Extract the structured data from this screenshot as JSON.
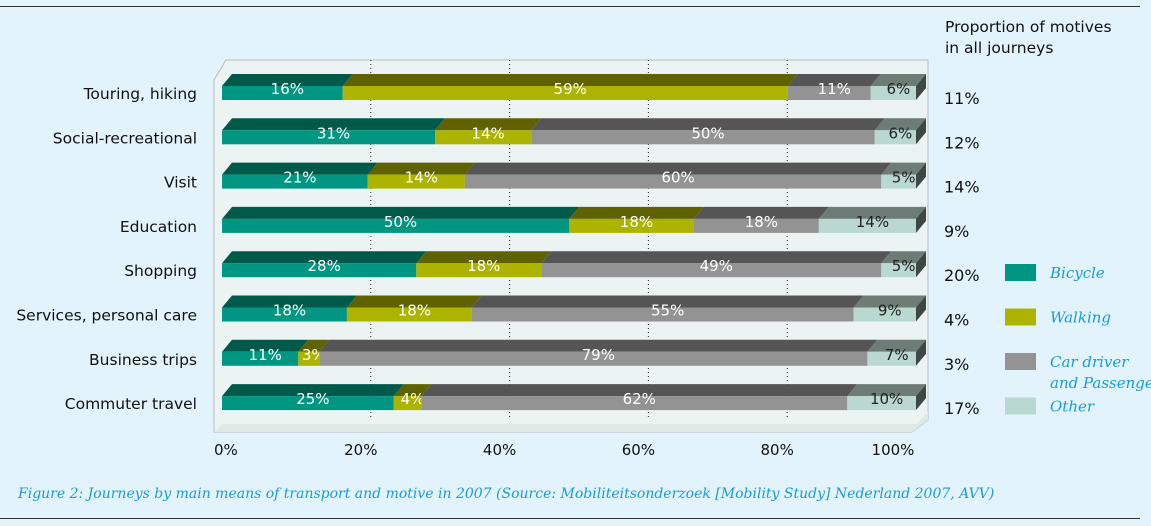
{
  "chart_data": {
    "type": "bar",
    "orientation": "horizontal",
    "stacked": true,
    "percent": true,
    "categories": [
      "Touring, hiking",
      "Social-recreational",
      "Visit",
      "Education",
      "Shopping",
      "Services,  personal care",
      "Business trips",
      "Commuter travel"
    ],
    "series": [
      {
        "name": "Bicycle",
        "color": "#009681",
        "top": "#005a4a",
        "label_color": "#ffffff",
        "values": [
          16,
          31,
          21,
          50,
          28,
          18,
          11,
          25
        ]
      },
      {
        "name": "Walking",
        "color": "#adb400",
        "top": "#5e6200",
        "label_color": "#ffffff",
        "values": [
          59,
          14,
          14,
          18,
          18,
          18,
          3,
          4
        ]
      },
      {
        "name": "Car driver and Passenger",
        "legend_lines": [
          "Car driver",
          "and Passenger"
        ],
        "color": "#939393",
        "top": "#555555",
        "label_color": "#ffffff",
        "values": [
          11,
          50,
          60,
          18,
          49,
          55,
          79,
          62
        ]
      },
      {
        "name": "Other",
        "color": "#b9d9d0",
        "top": "#6d7d76",
        "label_color": "#222222",
        "values": [
          6,
          6,
          5,
          14,
          5,
          9,
          7,
          10
        ]
      }
    ],
    "xticks": [
      "0%",
      "20%",
      "40%",
      "60%",
      "80%",
      "100%"
    ],
    "xlim": [
      0,
      100
    ],
    "grid": "vertical dotted",
    "legend": "right",
    "side_title": [
      "Proportion of motives",
      "in all journeys"
    ],
    "side_values": [
      "11%",
      "12%",
      "14%",
      "9%",
      "20%",
      "4%",
      "3%",
      "17%"
    ],
    "caption": "Figure 2: Journeys by main means of transport and motive in 2007 (Source: Mobiliteitsonderzoek [Mobility Study] Nederland 2007, AVV)"
  }
}
